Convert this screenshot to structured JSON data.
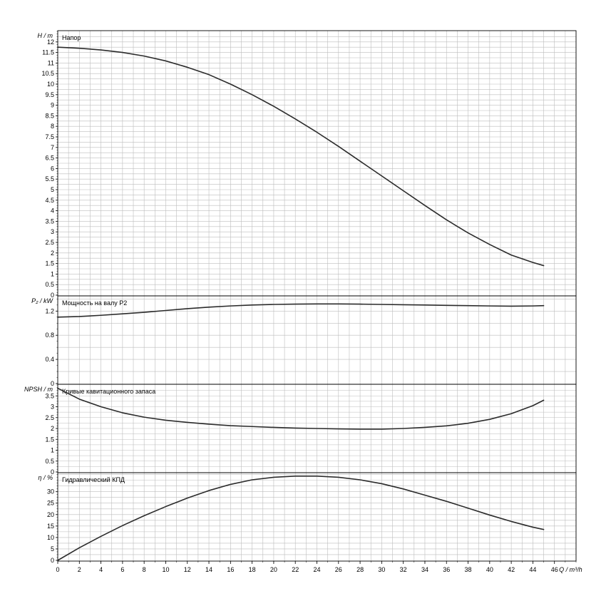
{
  "chart_data": {
    "type": "line",
    "x_axis": {
      "label": "Q / m³/h",
      "range": [
        0,
        48
      ],
      "tick_labels": [
        "0",
        "2",
        "4",
        "6",
        "8",
        "10",
        "12",
        "14",
        "16",
        "18",
        "20",
        "22",
        "24",
        "26",
        "28",
        "30",
        "32",
        "34",
        "36",
        "38",
        "40",
        "42",
        "44",
        "46"
      ],
      "minor_step": 1
    },
    "grid": true,
    "curve_color": "#2b2b2b",
    "panels": [
      {
        "id": "head",
        "axis_label": "H / m",
        "title": "Напор",
        "ylim": [
          0,
          12.5
        ],
        "tick_labels": [
          "0",
          "0.5",
          "1",
          "1.5",
          "2",
          "2.5",
          "3",
          "3.5",
          "4",
          "4.5",
          "5",
          "5.5",
          "6",
          "6.5",
          "7",
          "7.5",
          "8",
          "8.5",
          "9",
          "9.5",
          "10",
          "10.5",
          "11",
          "11.5",
          "12"
        ],
        "tick_values": [
          0,
          0.5,
          1,
          1.5,
          2,
          2.5,
          3,
          3.5,
          4,
          4.5,
          5,
          5.5,
          6,
          6.5,
          7,
          7.5,
          8,
          8.5,
          9,
          9.5,
          10,
          10.5,
          11,
          11.5,
          12
        ],
        "series": [
          {
            "x": [
              0,
              2,
              4,
              6,
              8,
              10,
              12,
              14,
              16,
              18,
              20,
              22,
              24,
              26,
              28,
              30,
              32,
              34,
              36,
              38,
              40,
              42,
              44,
              45
            ],
            "y": [
              11.75,
              11.7,
              11.62,
              11.5,
              11.33,
              11.1,
              10.8,
              10.45,
              10.0,
              9.5,
              8.95,
              8.35,
              7.72,
              7.05,
              6.35,
              5.65,
              4.95,
              4.25,
              3.57,
              2.95,
              2.4,
              1.9,
              1.55,
              1.4
            ]
          }
        ]
      },
      {
        "id": "power",
        "axis_label": "P₂ / kW",
        "title": "Мощность на валу P2",
        "ylim": [
          0,
          1.44
        ],
        "tick_labels": [
          "0",
          "0.4",
          "0.8",
          "1.2"
        ],
        "tick_values": [
          0,
          0.4,
          0.8,
          1.2
        ],
        "series": [
          {
            "x": [
              0,
              2,
              4,
              6,
              8,
              10,
              12,
              14,
              16,
              18,
              20,
              22,
              24,
              26,
              28,
              30,
              32,
              34,
              36,
              38,
              40,
              42,
              44,
              45
            ],
            "y": [
              1.1,
              1.11,
              1.13,
              1.155,
              1.18,
              1.21,
              1.24,
              1.265,
              1.285,
              1.3,
              1.31,
              1.315,
              1.318,
              1.318,
              1.315,
              1.31,
              1.305,
              1.3,
              1.295,
              1.29,
              1.285,
              1.282,
              1.285,
              1.29
            ]
          }
        ]
      },
      {
        "id": "npsh",
        "axis_label": "NPSH / m",
        "title": "Кривые кавитационного запаса",
        "ylim": [
          0,
          4.0
        ],
        "tick_labels": [
          "0",
          "0.5",
          "1",
          "1.5",
          "2",
          "2.5",
          "3",
          "3.5"
        ],
        "tick_values": [
          0,
          0.5,
          1,
          1.5,
          2,
          2.5,
          3,
          3.5
        ],
        "series": [
          {
            "x": [
              0,
              2,
              4,
              6,
              8,
              10,
              12,
              14,
              16,
              18,
              20,
              22,
              24,
              26,
              28,
              30,
              32,
              34,
              36,
              38,
              40,
              42,
              44,
              45
            ],
            "y": [
              3.85,
              3.35,
              3.0,
              2.72,
              2.52,
              2.38,
              2.28,
              2.2,
              2.13,
              2.09,
              2.05,
              2.02,
              2.0,
              1.98,
              1.97,
              1.97,
              2.0,
              2.05,
              2.12,
              2.24,
              2.42,
              2.68,
              3.05,
              3.3
            ]
          }
        ]
      },
      {
        "id": "efficiency",
        "axis_label": "η / %",
        "title": "Гидравлический КПД",
        "ylim": [
          0,
          38
        ],
        "tick_labels": [
          "0",
          "5",
          "10",
          "15",
          "20",
          "25",
          "30"
        ],
        "tick_values": [
          0,
          5,
          10,
          15,
          20,
          25,
          30
        ],
        "series": [
          {
            "x": [
              0,
              2,
              4,
              6,
              8,
              10,
              12,
              14,
              16,
              18,
              20,
              22,
              24,
              26,
              28,
              30,
              32,
              34,
              36,
              38,
              40,
              42,
              44,
              45
            ],
            "y": [
              0,
              5.5,
              10.5,
              15.2,
              19.5,
              23.5,
              27.2,
              30.5,
              33.2,
              35.2,
              36.3,
              36.8,
              36.8,
              36.3,
              35.2,
              33.5,
              31.2,
              28.5,
              25.8,
              22.8,
              19.8,
              17.0,
              14.5,
              13.5
            ]
          }
        ]
      }
    ]
  }
}
